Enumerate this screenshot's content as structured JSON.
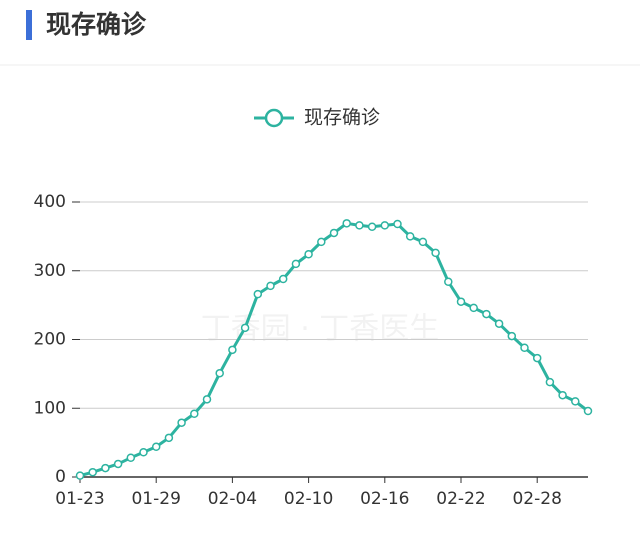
{
  "chart_data": {
    "type": "line",
    "title": "现存确诊",
    "watermark": "丁香园 · 丁香医生",
    "categories": [
      "01-23",
      null,
      null,
      null,
      null,
      null,
      "01-29",
      null,
      null,
      null,
      null,
      null,
      "02-04",
      null,
      null,
      null,
      null,
      null,
      "02-10",
      null,
      null,
      null,
      null,
      null,
      "02-16",
      null,
      null,
      null,
      null,
      null,
      "02-22",
      null,
      null,
      null,
      null,
      null,
      "02-28",
      null,
      null,
      null,
      null
    ],
    "series": [
      {
        "name": "现存确诊",
        "color": "#2db3a0",
        "values": [
          2,
          7,
          13,
          19,
          28,
          36,
          44,
          57,
          79,
          92,
          113,
          151,
          185,
          217,
          266,
          278,
          288,
          310,
          324,
          342,
          355,
          369,
          366,
          364,
          366,
          368,
          350,
          342,
          326,
          284,
          255,
          246,
          237,
          223,
          205,
          188,
          173,
          138,
          119,
          110,
          96
        ]
      }
    ],
    "ylim": [
      0,
      400
    ],
    "yticks": [
      0,
      100,
      200,
      300,
      400
    ],
    "grid": true
  }
}
